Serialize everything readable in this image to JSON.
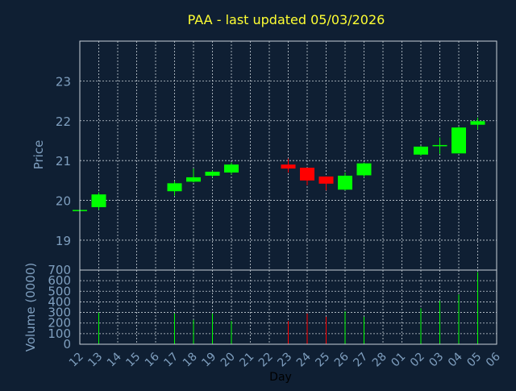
{
  "chart_data": [
    {
      "type": "candlestick",
      "title": "PAA - last updated 05/03/2026",
      "ylabel": "Price",
      "xlabel": "",
      "ylim": [
        18.25,
        24.0
      ],
      "yticks": [
        19,
        20,
        21,
        22,
        23
      ],
      "grid": true,
      "categories": [
        "12",
        "13",
        "14",
        "15",
        "16",
        "17",
        "18",
        "19",
        "20",
        "21",
        "22",
        "23",
        "24",
        "25",
        "26",
        "27",
        "28",
        "01",
        "02",
        "03",
        "04",
        "05",
        "06"
      ],
      "candles": [
        {
          "x": "12",
          "open": 19.76,
          "high": 19.79,
          "low": 19.73,
          "close": 19.76
        },
        {
          "x": "13",
          "open": 19.83,
          "high": 20.2,
          "low": 19.76,
          "close": 20.15
        },
        {
          "x": "17",
          "open": 20.23,
          "high": 20.48,
          "low": 20.12,
          "close": 20.43
        },
        {
          "x": "18",
          "open": 20.47,
          "high": 20.8,
          "low": 20.45,
          "close": 20.58
        },
        {
          "x": "19",
          "open": 20.62,
          "high": 20.75,
          "low": 20.58,
          "close": 20.72
        },
        {
          "x": "20",
          "open": 20.7,
          "high": 20.95,
          "low": 20.65,
          "close": 20.9
        },
        {
          "x": "23",
          "open": 20.9,
          "high": 21.05,
          "low": 20.7,
          "close": 20.8
        },
        {
          "x": "24",
          "open": 20.82,
          "high": 20.82,
          "low": 20.38,
          "close": 20.5
        },
        {
          "x": "25",
          "open": 20.6,
          "high": 20.6,
          "low": 20.25,
          "close": 20.42
        },
        {
          "x": "26",
          "open": 20.27,
          "high": 20.7,
          "low": 20.25,
          "close": 20.62
        },
        {
          "x": "27",
          "open": 20.63,
          "high": 20.95,
          "low": 20.58,
          "close": 20.93
        },
        {
          "x": "02",
          "open": 21.15,
          "high": 21.37,
          "low": 21.12,
          "close": 21.35
        },
        {
          "x": "03",
          "open": 21.37,
          "high": 21.58,
          "low": 21.17,
          "close": 21.39
        },
        {
          "x": "04",
          "open": 21.18,
          "high": 21.85,
          "low": 21.18,
          "close": 21.83
        },
        {
          "x": "05",
          "open": 21.9,
          "high": 22.08,
          "low": 21.78,
          "close": 21.99
        }
      ],
      "up_color": "#00ff00",
      "down_color": "#ff0000"
    },
    {
      "type": "bar",
      "ylabel": "Volume (0000)",
      "xlabel": "Day",
      "ylim": [
        0,
        700
      ],
      "yticks": [
        0,
        100,
        200,
        300,
        400,
        500,
        600,
        700
      ],
      "grid": true,
      "categories": [
        "12",
        "13",
        "14",
        "15",
        "16",
        "17",
        "18",
        "19",
        "20",
        "21",
        "22",
        "23",
        "24",
        "25",
        "26",
        "27",
        "28",
        "01",
        "02",
        "03",
        "04",
        "05",
        "06"
      ],
      "bars": [
        {
          "x": "13",
          "value": 300,
          "color": "#00ff00"
        },
        {
          "x": "17",
          "value": 290,
          "color": "#00ff00"
        },
        {
          "x": "18",
          "value": 230,
          "color": "#00ff00"
        },
        {
          "x": "19",
          "value": 290,
          "color": "#00ff00"
        },
        {
          "x": "20",
          "value": 220,
          "color": "#00ff00"
        },
        {
          "x": "23",
          "value": 220,
          "color": "#ff0000"
        },
        {
          "x": "24",
          "value": 290,
          "color": "#ff0000"
        },
        {
          "x": "25",
          "value": 260,
          "color": "#ff0000"
        },
        {
          "x": "26",
          "value": 310,
          "color": "#00ff00"
        },
        {
          "x": "27",
          "value": 260,
          "color": "#00ff00"
        },
        {
          "x": "02",
          "value": 340,
          "color": "#00ff00"
        },
        {
          "x": "03",
          "value": 410,
          "color": "#00ff00"
        },
        {
          "x": "04",
          "value": 470,
          "color": "#00ff00"
        },
        {
          "x": "05",
          "value": 680,
          "color": "#00ff00"
        }
      ]
    }
  ]
}
